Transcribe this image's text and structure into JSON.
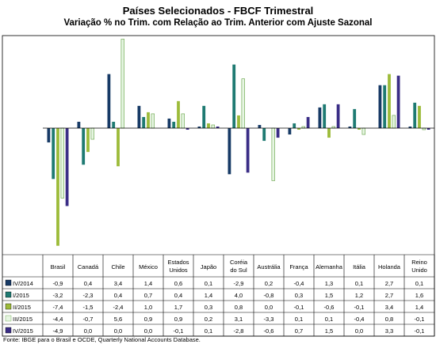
{
  "chart_data": {
    "type": "bar",
    "title": "Países Selecionados - FBCF Trimestral",
    "subtitle": "Variação % no Trim. com Relação ao Trim. Anterior com Ajuste Sazonal",
    "categories": [
      [
        "Brasil"
      ],
      [
        "Canadá"
      ],
      [
        "Chile"
      ],
      [
        "México"
      ],
      [
        "Estados",
        "Unidos"
      ],
      [
        "Japão"
      ],
      [
        "Coréia",
        "do Sul"
      ],
      [
        "Austrália"
      ],
      [
        "França"
      ],
      [
        "Alemanha"
      ],
      [
        "Itália"
      ],
      [
        "Holanda"
      ],
      [
        "Reino",
        "Unido"
      ]
    ],
    "series": [
      {
        "name": "IV/2014",
        "color": "#173a66",
        "values": [
          -0.9,
          0.4,
          3.4,
          1.4,
          0.6,
          0.1,
          -2.9,
          0.2,
          -0.4,
          1.3,
          0.1,
          2.7,
          0.1
        ],
        "labels": [
          "-0,9",
          "0,4",
          "3,4",
          "1,4",
          "0,6",
          "0,1",
          "-2,9",
          "0,2",
          "-0,4",
          "1,3",
          "0,1",
          "2,7",
          "0,1"
        ]
      },
      {
        "name": "I/2015",
        "color": "#1e7a72",
        "values": [
          -3.2,
          -2.3,
          0.4,
          0.7,
          0.4,
          1.4,
          4.0,
          -0.8,
          0.3,
          1.5,
          1.2,
          2.7,
          1.6
        ],
        "labels": [
          "-3,2",
          "-2,3",
          "0,4",
          "0,7",
          "0,4",
          "1,4",
          "4,0",
          "-0,8",
          "0,3",
          "1,5",
          "1,2",
          "2,7",
          "1,6"
        ]
      },
      {
        "name": "II/2015",
        "color": "#9dbb3a",
        "values": [
          -7.4,
          -1.5,
          -2.4,
          1.0,
          1.7,
          0.3,
          0.8,
          0.0,
          -0.1,
          -0.6,
          -0.1,
          3.4,
          1.4
        ],
        "labels": [
          "-7,4",
          "-1,5",
          "-2,4",
          "1,0",
          "1,7",
          "0,3",
          "0,8",
          "0,0",
          "-0,1",
          "-0,6",
          "-0,1",
          "3,4",
          "1,4"
        ]
      },
      {
        "name": "III/2015",
        "color": "#e6f5e2",
        "stroke": "#5f9f3f",
        "values": [
          -4.4,
          -0.7,
          5.6,
          0.9,
          0.9,
          0.2,
          3.1,
          -3.3,
          0.1,
          0.1,
          -0.4,
          0.8,
          -0.1
        ],
        "labels": [
          "-4,4",
          "-0,7",
          "5,6",
          "0,9",
          "0,9",
          "0,2",
          "3,1",
          "-3,3",
          "0,1",
          "0,1",
          "-0,4",
          "0,8",
          "-0,1"
        ]
      },
      {
        "name": "IV/2015",
        "color": "#3a2d86",
        "values": [
          -4.9,
          0.0,
          0.0,
          0.0,
          -0.1,
          0.1,
          -2.8,
          -0.6,
          0.7,
          1.5,
          0.0,
          3.3,
          -0.1
        ],
        "labels": [
          "-4,9",
          "0,0",
          "0,0",
          "0,0",
          "-0,1",
          "0,1",
          "-2,8",
          "-0,6",
          "0,7",
          "1,5",
          "0,0",
          "3,3",
          "-0,1"
        ]
      }
    ]
  },
  "footer": {
    "source": "Fonte: IBGE para o Brasil e OCDE, Quarterly National Accounts Database."
  }
}
